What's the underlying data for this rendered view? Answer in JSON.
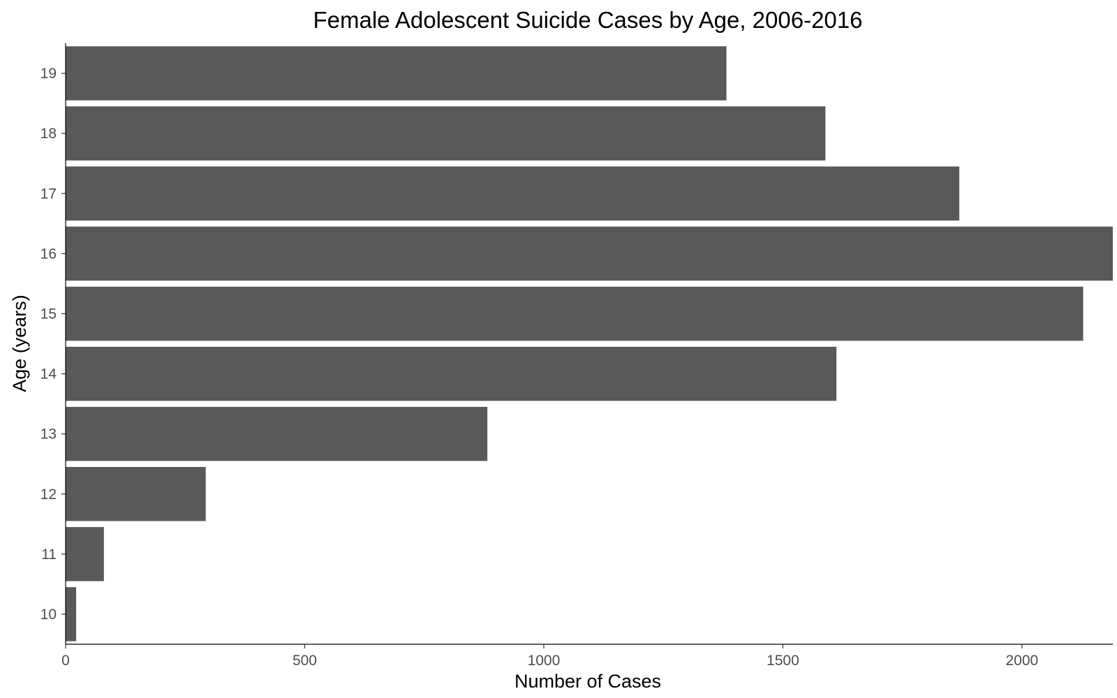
{
  "chart_data": {
    "type": "bar",
    "orientation": "horizontal",
    "title": "Female Adolescent Suicide Cases by Age, 2006-2016",
    "xlabel": "Number of Cases",
    "ylabel": "Age (years)",
    "categories": [
      "10",
      "11",
      "12",
      "13",
      "14",
      "15",
      "16",
      "17",
      "18",
      "19"
    ],
    "values": [
      22,
      80,
      293,
      882,
      1612,
      2128,
      2190,
      1869,
      1589,
      1382
    ],
    "xlim": [
      0,
      2190
    ],
    "xticks": [
      0,
      500,
      1000,
      1500,
      2000
    ],
    "xtick_labels": [
      "0",
      "500",
      "1000",
      "1500",
      "2000"
    ],
    "bar_color": "#595959",
    "grid": false,
    "legend": "none"
  }
}
